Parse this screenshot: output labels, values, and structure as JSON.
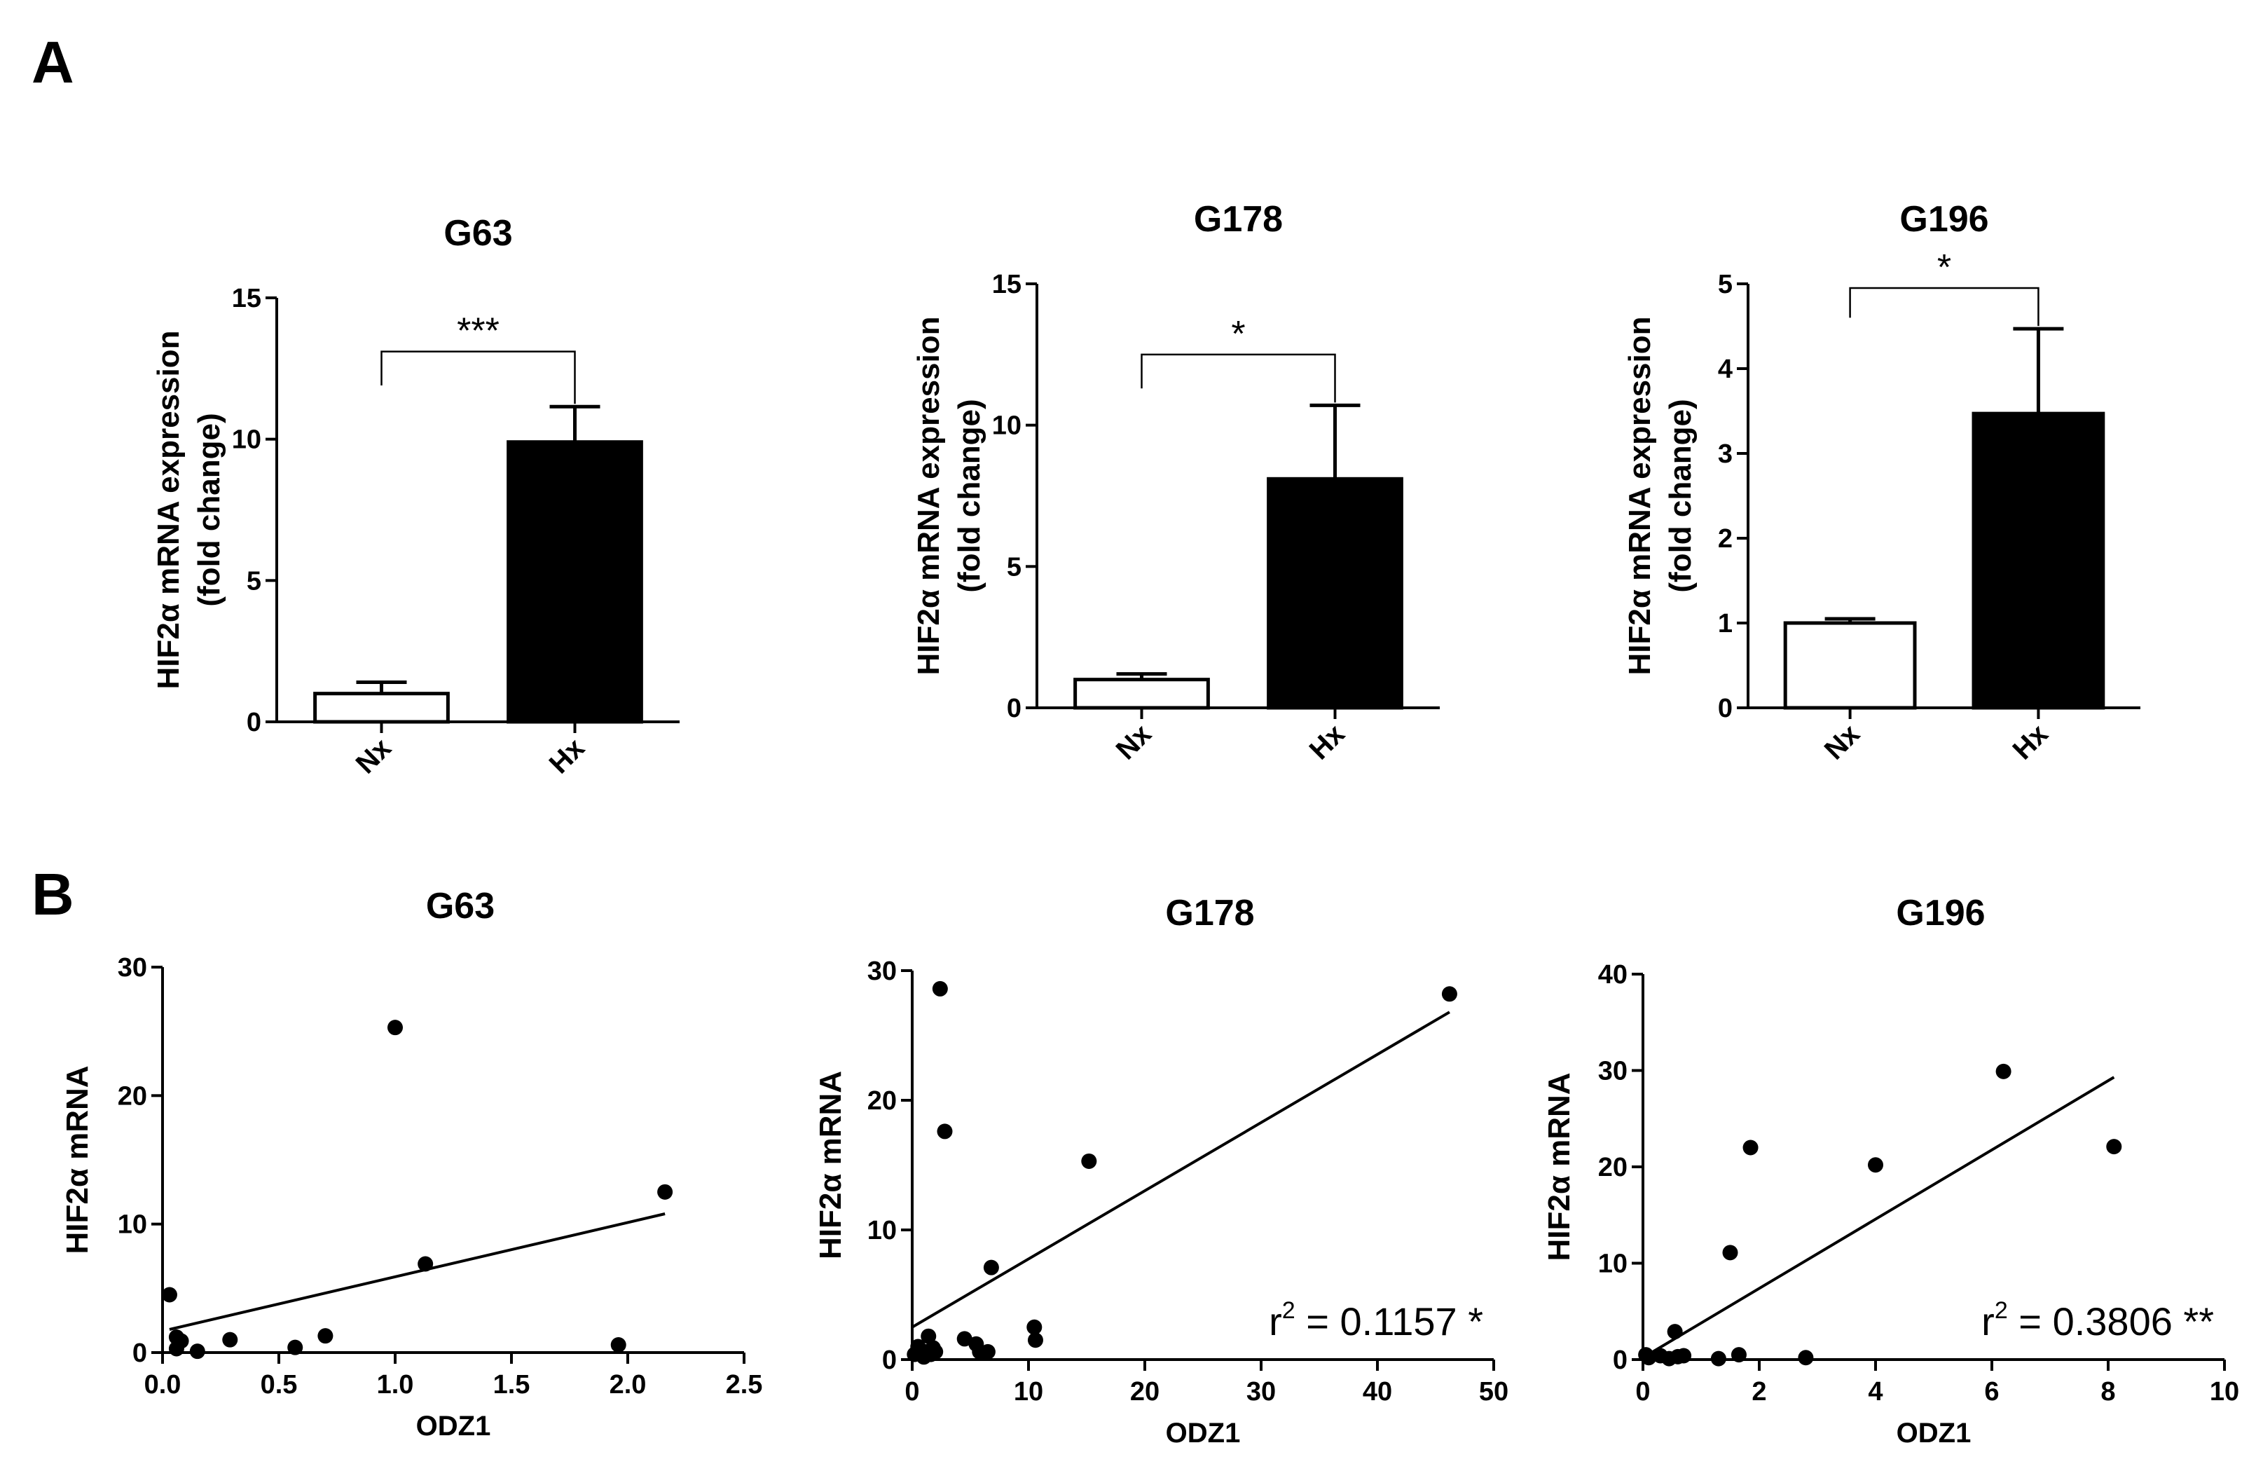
{
  "panels": {
    "a": "A",
    "b": "B"
  },
  "chart_data": [
    {
      "type": "bar",
      "title": "G63",
      "categories": [
        "Nx",
        "Hx"
      ],
      "values": [
        1.0,
        9.9
      ],
      "errors": [
        0.4,
        1.25
      ],
      "fills": [
        "#ffffff",
        "#000000"
      ],
      "ylabel_line1": "HIF2α mRNA expression",
      "ylabel_line2": "(fold change)",
      "ylim": [
        0,
        15
      ],
      "yticks": [
        0,
        5,
        10,
        15
      ],
      "significance": "***"
    },
    {
      "type": "bar",
      "title": "G178",
      "categories": [
        "Nx",
        "Hx"
      ],
      "values": [
        1.0,
        8.1
      ],
      "errors": [
        0.2,
        2.6
      ],
      "fills": [
        "#ffffff",
        "#000000"
      ],
      "ylabel_line1": "HIF2α mRNA expression",
      "ylabel_line2": "(fold change)",
      "ylim": [
        0,
        15
      ],
      "yticks": [
        0,
        5,
        10,
        15
      ],
      "significance": "*"
    },
    {
      "type": "bar",
      "title": "G196",
      "categories": [
        "Nx",
        "Hx"
      ],
      "values": [
        1.0,
        3.47
      ],
      "errors": [
        0.05,
        1.0
      ],
      "fills": [
        "#ffffff",
        "#000000"
      ],
      "ylabel_line1": "HIF2α mRNA expression",
      "ylabel_line2": "(fold change)",
      "ylim": [
        0,
        5
      ],
      "yticks": [
        0,
        1,
        2,
        3,
        4,
        5
      ],
      "significance": "*"
    },
    {
      "type": "scatter",
      "title": "G63",
      "xlabel": "ODZ1",
      "ylabel": "HIF2α mRNA",
      "xlim": [
        0,
        2.5
      ],
      "ylim": [
        0,
        30
      ],
      "xticks": [
        "0.0",
        "0.5",
        "1.0",
        "1.5",
        "2.0",
        "2.5"
      ],
      "yticks": [
        "0",
        "10",
        "20",
        "30"
      ],
      "x": [
        0.03,
        0.06,
        0.08,
        0.06,
        0.15,
        0.29,
        0.57,
        0.7,
        1.0,
        1.13,
        1.96,
        2.16
      ],
      "y": [
        4.5,
        1.2,
        0.9,
        0.3,
        0.1,
        1.0,
        0.4,
        1.3,
        25.3,
        6.9,
        0.6,
        12.5
      ],
      "fit": {
        "x": [
          0.03,
          2.16
        ],
        "y": [
          1.8,
          10.8
        ]
      },
      "annotation": ""
    },
    {
      "type": "scatter",
      "title": "G178",
      "xlabel": "ODZ1",
      "ylabel": "HIF2α mRNA",
      "xlim": [
        0,
        50
      ],
      "ylim": [
        0,
        30
      ],
      "xticks": [
        "0",
        "10",
        "20",
        "30",
        "40",
        "50"
      ],
      "yticks": [
        "0",
        "10",
        "20",
        "30"
      ],
      "x": [
        0.2,
        0.5,
        0.8,
        1.0,
        1.2,
        1.4,
        1.6,
        1.8,
        2.0,
        2.4,
        2.8,
        4.5,
        5.5,
        5.8,
        6.5,
        6.8,
        10.5,
        10.6,
        15.2,
        46.2
      ],
      "y": [
        0.4,
        1.0,
        0.5,
        0.2,
        0.6,
        1.8,
        0.4,
        0.9,
        0.6,
        28.6,
        17.6,
        1.6,
        1.2,
        0.6,
        0.6,
        7.1,
        2.5,
        1.5,
        15.3,
        28.2
      ],
      "fit": {
        "x": [
          0,
          46.2
        ],
        "y": [
          2.5,
          26.8
        ]
      },
      "annotation": "r",
      "ann_sup": "2",
      "ann_rest": " = 0.1157 *"
    },
    {
      "type": "scatter",
      "title": "G196",
      "xlabel": "ODZ1",
      "ylabel": "HIF2α mRNA",
      "xlim": [
        0,
        10
      ],
      "ylim": [
        0,
        40
      ],
      "xticks": [
        "0",
        "2",
        "4",
        "6",
        "8",
        "10"
      ],
      "yticks": [
        "0",
        "10",
        "20",
        "30",
        "40"
      ],
      "x": [
        0.05,
        0.1,
        0.3,
        0.45,
        0.55,
        0.6,
        0.7,
        1.3,
        1.5,
        1.65,
        1.85,
        2.8,
        4.0,
        6.2,
        8.1
      ],
      "y": [
        0.5,
        0.2,
        0.4,
        0.1,
        2.9,
        0.3,
        0.4,
        0.1,
        11.1,
        0.5,
        22.0,
        0.2,
        20.2,
        29.9,
        22.1
      ],
      "fit": {
        "x": [
          0,
          8.1
        ],
        "y": [
          0.2,
          29.3
        ]
      },
      "annotation": "r",
      "ann_sup": "2",
      "ann_rest": " = 0.3806 **"
    }
  ]
}
